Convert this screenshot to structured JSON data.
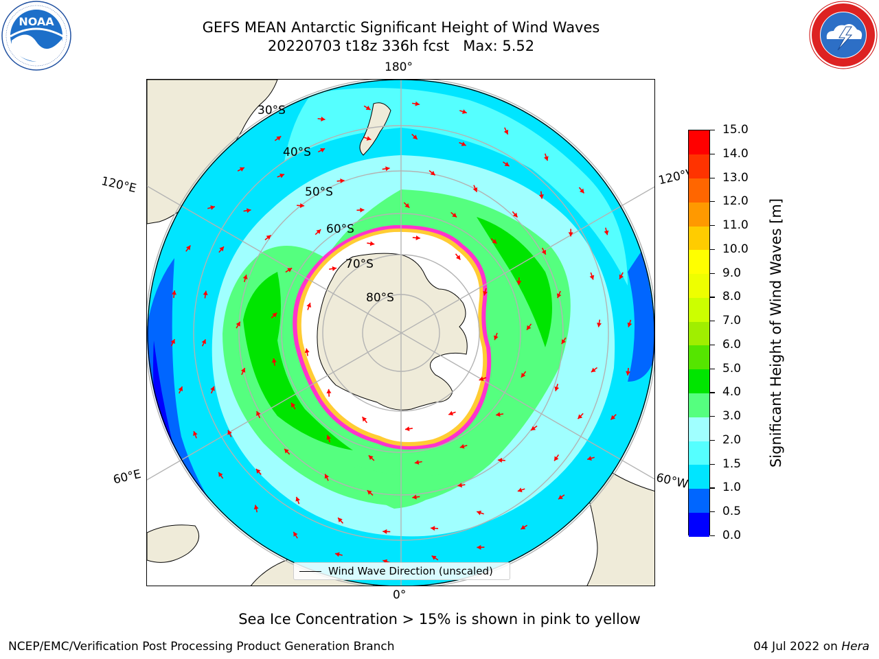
{
  "header": {
    "title_line1": "GEFS MEAN Antarctic Significant Height of Wind Waves",
    "title_line2": "20220703 t18z 336h fcst   Max: 5.52"
  },
  "logos": {
    "left": {
      "name": "NOAA",
      "text": "NOAA",
      "ring_text": "NATIONAL OCEANIC AND ATMOSPHERIC ADMINISTRATION · U.S. DEPARTMENT OF COMMERCE"
    },
    "right": {
      "name": "National Weather Service",
      "ring_text": "NATIONAL WEATHER SERVICE"
    }
  },
  "map": {
    "projection": "south-polar-stereographic",
    "longitude_labels": {
      "top": "180°",
      "bottom": "0°",
      "upper_left": "120°E",
      "upper_right": "120°W",
      "lower_left": "60°E",
      "lower_right": "60°W"
    },
    "latitude_labels": [
      "30°S",
      "40°S",
      "50°S",
      "60°S",
      "70°S",
      "80°S"
    ],
    "colors": {
      "land": "#efebd9",
      "coast": "#000000",
      "grid": "#b3b3b3",
      "arrow": "#ff0000"
    },
    "legend": {
      "label": "Wind Wave Direction (unscaled)"
    }
  },
  "colorbar": {
    "title": "Significant Height of Wind Waves [m]",
    "ticks": [
      "0.0",
      "0.5",
      "1.0",
      "1.5",
      "2.0",
      "3.0",
      "4.0",
      "5.0",
      "6.0",
      "7.0",
      "8.0",
      "9.0",
      "10.0",
      "11.0",
      "12.0",
      "13.0",
      "14.0",
      "15.0"
    ],
    "colors": [
      "#0000ff",
      "#0066ff",
      "#00e5ff",
      "#55ffff",
      "#a0ffff",
      "#55ff7f",
      "#00e500",
      "#55e500",
      "#a0ee00",
      "#ccff00",
      "#eeff00",
      "#ffff00",
      "#ffcc00",
      "#ff9900",
      "#ff6600",
      "#ff3300",
      "#ff0000"
    ]
  },
  "footer": {
    "caption": "Sea Ice Concentration > 15% is shown in pink to yellow",
    "credit_left": "NCEP/EMC/Verification Post Processing Product Generation Branch",
    "credit_right_date": "04 Jul 2022 on ",
    "credit_right_machine": "Hera"
  }
}
